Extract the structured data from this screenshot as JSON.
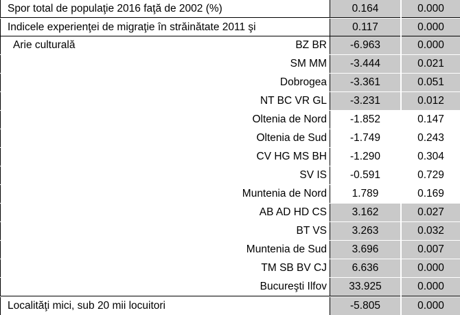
{
  "rows": [
    {
      "label": "Spor total de populaţie 2016 faţă de 2002 (%)",
      "coef": "0.164",
      "sig": "0.000",
      "align": "left"
    },
    {
      "label": "Indicele experienţei de migraţie în străinătate 2011 şi",
      "coef": "0.117",
      "sig": "0.000",
      "align": "left"
    },
    {
      "label": "Arie culturală",
      "sub": "BZ BR",
      "coef": "-6.963",
      "sig": "0.000",
      "align": "left"
    },
    {
      "label": "SM MM",
      "coef": "-3.444",
      "sig": "0.021",
      "align": "right"
    },
    {
      "label": "Dobrogea",
      "coef": "-3.361",
      "sig": "0.051",
      "align": "right"
    },
    {
      "label": "NT BC VR GL",
      "coef": "-3.231",
      "sig": "0.012",
      "align": "right"
    },
    {
      "label": "Oltenia de Nord",
      "coef": "-1.852",
      "sig": "0.147",
      "align": "right"
    },
    {
      "label": "Oltenia de Sud",
      "coef": "-1.749",
      "sig": "0.243",
      "align": "right"
    },
    {
      "label": "CV HG MS BH",
      "coef": "-1.290",
      "sig": "0.304",
      "align": "right"
    },
    {
      "label": "SV IS",
      "coef": "-0.591",
      "sig": "0.729",
      "align": "right"
    },
    {
      "label": "Muntenia de Nord",
      "coef": "1.789",
      "sig": "0.169",
      "align": "right"
    },
    {
      "label": "AB AD HD CS",
      "coef": "3.162",
      "sig": "0.027",
      "align": "right"
    },
    {
      "label": "BT VS",
      "coef": "3.263",
      "sig": "0.032",
      "align": "right"
    },
    {
      "label": "Muntenia de Sud",
      "coef": "3.696",
      "sig": "0.007",
      "align": "right"
    },
    {
      "label": "TM SB BV CJ",
      "coef": "6.636",
      "sig": "0.000",
      "align": "right"
    },
    {
      "label": "Bucureşti Ilfov",
      "coef": "33.925",
      "sig": "0.000",
      "align": "right"
    },
    {
      "label": "Localităţi mici, sub 20 mii locuitori",
      "coef": "-5.805",
      "sig": "0.000",
      "align": "left"
    }
  ]
}
